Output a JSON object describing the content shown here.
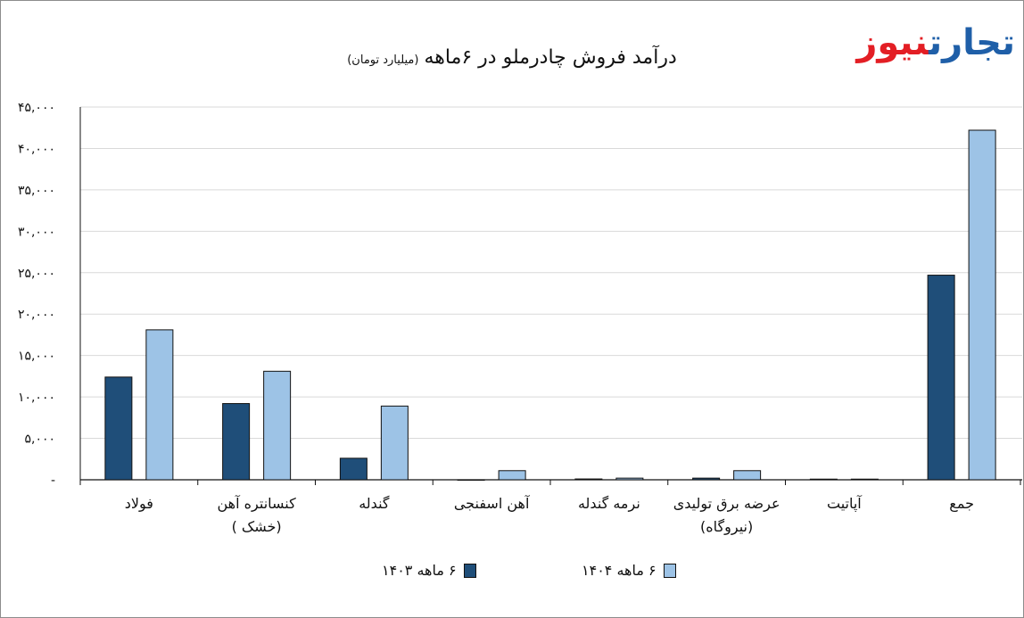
{
  "logo": {
    "text_blue": "تجارت",
    "text_red": "نیوز"
  },
  "chart_data": {
    "type": "bar",
    "title": "درآمد فروش چادرملو در ۶ماهه",
    "subtitle": "(میلیارد تومان)",
    "categories": [
      "فولاد",
      "کنسانتره آهن\n(خشک )",
      "گندله",
      "آهن اسفنجی",
      "نرمه گندله",
      "عرضه برق تولیدی\n(نیروگاه)",
      "آپاتیت",
      "جمع"
    ],
    "series": [
      {
        "name": "۶ ماهه ۱۴۰۳",
        "color": "#1f4e79",
        "values": [
          12400,
          9200,
          2600,
          0,
          100,
          200,
          80,
          24700
        ]
      },
      {
        "name": "۶ ماهه ۱۴۰۴",
        "color": "#9dc3e6",
        "values": [
          18100,
          13100,
          8900,
          1100,
          200,
          1100,
          80,
          42200
        ]
      }
    ],
    "ylim": [
      0,
      45000
    ],
    "yticks": [
      {
        "v": 0,
        "label": "-"
      },
      {
        "v": 5000,
        "label": "۵,۰۰۰"
      },
      {
        "v": 10000,
        "label": "۱۰,۰۰۰"
      },
      {
        "v": 15000,
        "label": "۱۵,۰۰۰"
      },
      {
        "v": 20000,
        "label": "۲۰,۰۰۰"
      },
      {
        "v": 25000,
        "label": "۲۵,۰۰۰"
      },
      {
        "v": 30000,
        "label": "۳۰,۰۰۰"
      },
      {
        "v": 35000,
        "label": "۳۵,۰۰۰"
      },
      {
        "v": 40000,
        "label": "۴۰,۰۰۰"
      },
      {
        "v": 45000,
        "label": "۴۵,۰۰۰"
      }
    ],
    "grid": true,
    "legend_position": "bottom"
  }
}
